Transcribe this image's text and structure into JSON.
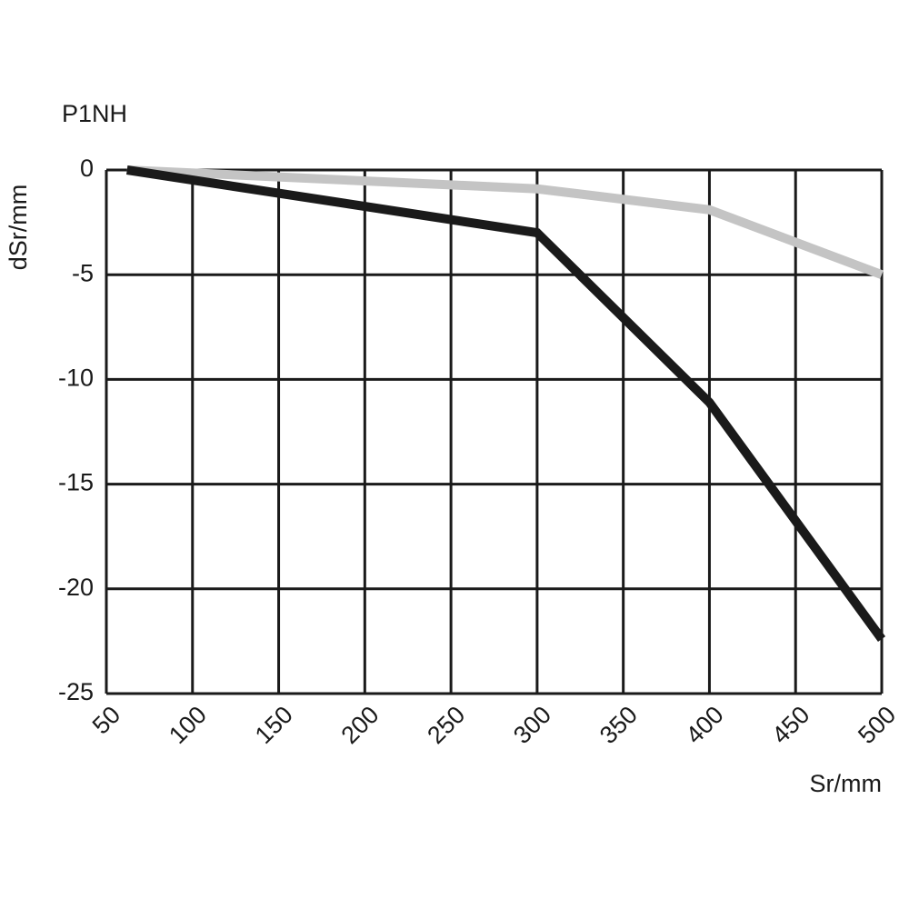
{
  "chart_data": {
    "type": "line",
    "title": "P1NH",
    "x_label": "Sr/mm",
    "y_label": "dSr/mm",
    "x": [
      62,
      300,
      400,
      500
    ],
    "series": [
      {
        "color": "#1a1a1a",
        "values": [
          0,
          -3,
          -11.1,
          -22.4
        ]
      },
      {
        "color": "#c4c4c4",
        "values": [
          0,
          -0.9,
          -1.9,
          -5.0
        ]
      }
    ],
    "xlim": [
      50,
      500
    ],
    "xticks": [
      50,
      100,
      150,
      200,
      250,
      300,
      350,
      400,
      450,
      500
    ],
    "ylim": [
      -25,
      0
    ],
    "yticks": [
      0,
      -5,
      -10,
      -15,
      -20,
      -25
    ],
    "grid": true
  }
}
